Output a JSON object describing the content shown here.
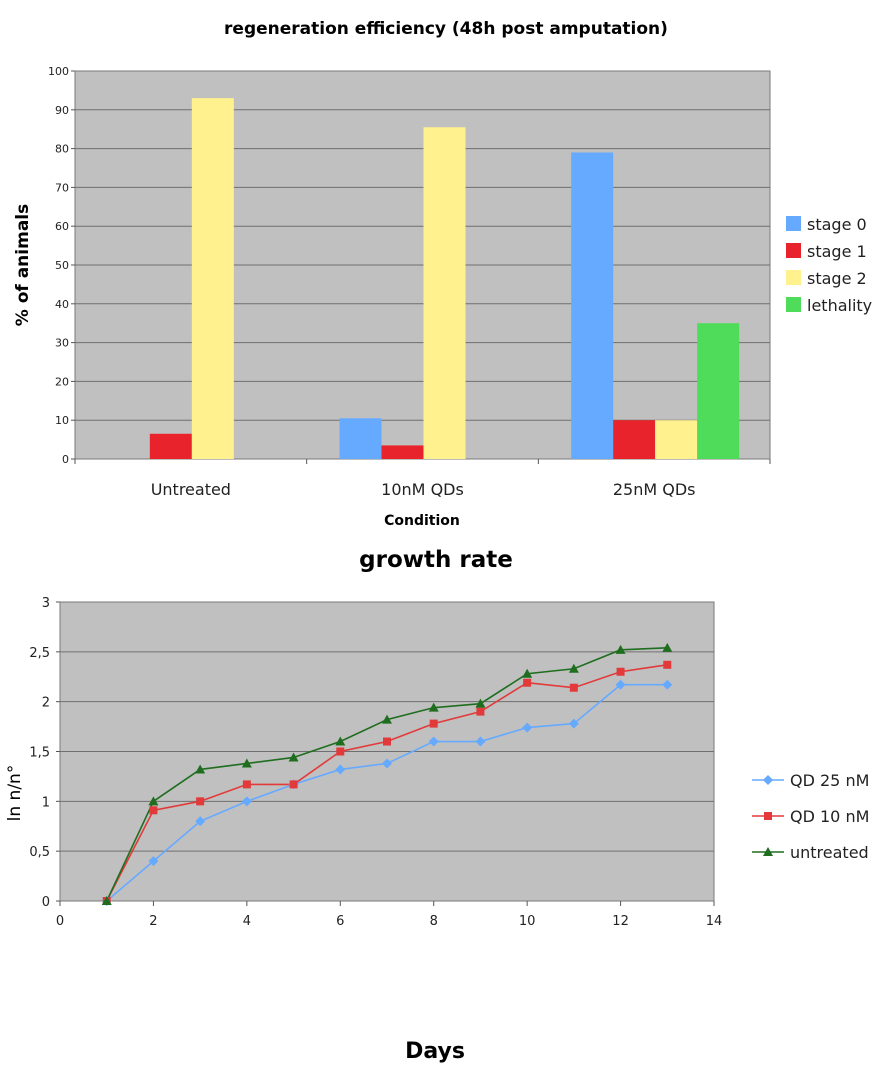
{
  "chart_data": [
    {
      "type": "bar",
      "title": "regeneration efficiency (48h post amputation)",
      "xlabel": "Condition",
      "ylabel": "% of animals",
      "ylim": [
        0,
        100
      ],
      "yticks": [
        "0",
        "10",
        "20",
        "30",
        "40",
        "50",
        "60",
        "70",
        "80",
        "90",
        "100"
      ],
      "grid": true,
      "legend_position": "right",
      "categories": [
        "Untreated",
        "10nM QDs",
        "25nM QDs"
      ],
      "series": [
        {
          "name": "stage 0",
          "color": "#66aaff",
          "values": [
            0,
            10.5,
            79
          ]
        },
        {
          "name": "stage 1",
          "color": "#e8232b",
          "values": [
            6.5,
            3.5,
            10
          ]
        },
        {
          "name": " stage 2",
          "color": "#fff28e",
          "values": [
            93,
            85.5,
            10
          ]
        },
        {
          "name": "lethality",
          "color": "#4fdc5a",
          "values": [
            0,
            0,
            35
          ]
        }
      ]
    },
    {
      "type": "line",
      "title": "growth rate",
      "xlabel": "Days",
      "ylabel": "ln n/n°",
      "xlim": [
        0,
        14
      ],
      "ylim": [
        0,
        3
      ],
      "xticks": [
        "0",
        "2",
        "4",
        "6",
        "8",
        "10",
        "12",
        "14"
      ],
      "yticks": [
        "0",
        "0,5",
        "1",
        "1,5",
        "2",
        "2,5",
        "3"
      ],
      "grid": true,
      "legend_position": "right",
      "x": [
        1,
        2,
        3,
        4,
        5,
        6,
        7,
        8,
        9,
        10,
        11,
        12,
        13
      ],
      "series": [
        {
          "name": "QD 25 nM",
          "color": "#66aaff",
          "marker": "diamond",
          "values": [
            0,
            0.4,
            0.8,
            1.0,
            1.17,
            1.32,
            1.38,
            1.6,
            1.6,
            1.74,
            1.78,
            2.17,
            2.17
          ]
        },
        {
          "name": "QD 10 nM",
          "color": "#e23a3a",
          "marker": "square",
          "values": [
            0,
            0.91,
            1.0,
            1.17,
            1.17,
            1.5,
            1.6,
            1.78,
            1.9,
            2.19,
            2.14,
            2.3,
            2.37
          ]
        },
        {
          "name": "untreated",
          "color": "#1f6e1f",
          "marker": "triangle",
          "values": [
            0,
            1.0,
            1.32,
            1.38,
            1.44,
            1.6,
            1.82,
            1.94,
            1.98,
            2.28,
            2.33,
            2.52,
            2.54
          ]
        }
      ]
    }
  ]
}
